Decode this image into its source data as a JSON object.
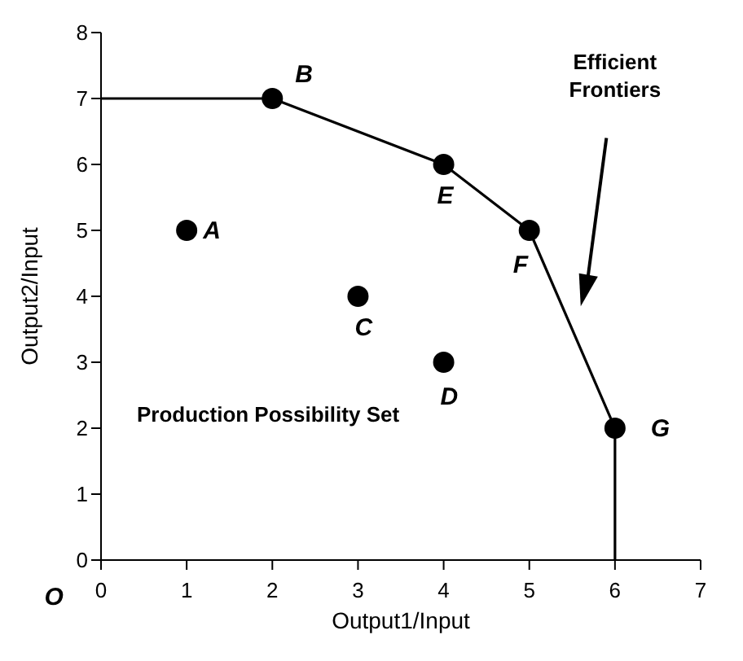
{
  "chart_data": {
    "type": "scatter",
    "xlabel": "Output1/Input",
    "ylabel": "Output2/Input",
    "xlim": [
      0,
      7
    ],
    "ylim": [
      0,
      8
    ],
    "xticks": [
      0,
      1,
      2,
      3,
      4,
      5,
      6,
      7
    ],
    "yticks": [
      0,
      1,
      2,
      3,
      4,
      5,
      6,
      7,
      8
    ],
    "line_style": "solid",
    "series": [
      {
        "type": "line",
        "marker": "none",
        "color": "#000000",
        "x": [
          0,
          2,
          4,
          5,
          6,
          6
        ],
        "values": [
          7,
          7,
          6,
          5,
          2,
          0
        ]
      },
      {
        "marker": "circle",
        "color": "#000000",
        "x": [
          1,
          2,
          3,
          4,
          4,
          5,
          6
        ],
        "values": [
          5,
          7,
          4,
          3,
          6,
          5,
          2
        ]
      }
    ],
    "annotations": [
      {
        "text": "A",
        "x": 1,
        "y": 5
      },
      {
        "text": "B",
        "x": 2,
        "y": 7
      },
      {
        "text": "C",
        "x": 3,
        "y": 4
      },
      {
        "text": "D",
        "x": 4,
        "y": 3
      },
      {
        "text": "E",
        "x": 4,
        "y": 6
      },
      {
        "text": "F",
        "x": 5,
        "y": 5
      },
      {
        "text": "G",
        "x": 6,
        "y": 2
      },
      "O",
      "Efficient Frontiers",
      "Production Possibility Set"
    ]
  }
}
